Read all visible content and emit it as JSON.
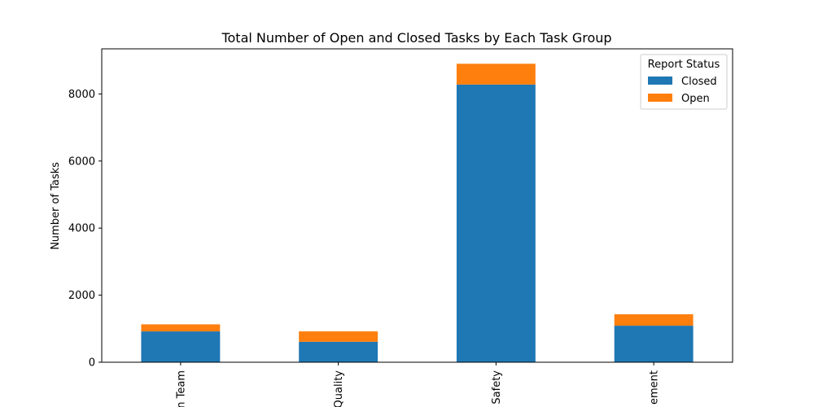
{
  "chart_data": {
    "type": "bar",
    "stacked": true,
    "title": "Total Number of Open and Closed Tasks by Each Task Group",
    "xlabel": "",
    "ylabel": "Number of Tasks",
    "categories": [
      "n Team",
      "Quality",
      "Safety",
      "ement"
    ],
    "series": [
      {
        "name": "Closed",
        "values": [
          920,
          610,
          8280,
          1090
        ],
        "color": "#1f77b4"
      },
      {
        "name": "Open",
        "values": [
          210,
          310,
          620,
          340
        ],
        "color": "#ff7f0e"
      }
    ],
    "ylim": [
      0,
      9345
    ],
    "yticks": [
      0,
      2000,
      4000,
      6000,
      8000
    ],
    "ytick_labels": [
      "0",
      "2000",
      "4000",
      "6000",
      "8000"
    ],
    "grid": false,
    "legend": {
      "title": "Report Status",
      "placement": "top-right"
    }
  }
}
